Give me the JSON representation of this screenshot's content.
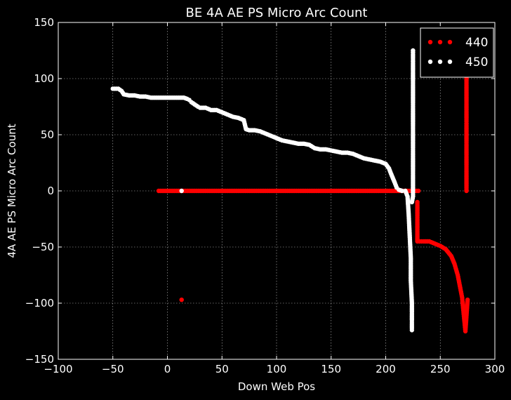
{
  "chart_data": {
    "type": "scatter",
    "title": "BE 4A AE PS Micro Arc Count",
    "xlabel": "Down Web Pos",
    "ylabel": "4A AE PS Micro Arc Count",
    "xlim": [
      -100,
      300
    ],
    "ylim": [
      -150,
      150
    ],
    "xticks": [
      -100,
      -50,
      0,
      50,
      100,
      150,
      200,
      250,
      300
    ],
    "yticks": [
      -150,
      -100,
      -50,
      0,
      50,
      100,
      150
    ],
    "grid": true,
    "legend_position": "top-right",
    "series": [
      {
        "name": "440",
        "color": "#ff0000",
        "points": [
          [
            -8,
            0
          ],
          [
            0,
            0
          ],
          [
            10,
            0
          ],
          [
            20,
            0
          ],
          [
            30,
            0
          ],
          [
            40,
            0
          ],
          [
            50,
            0
          ],
          [
            60,
            0
          ],
          [
            70,
            0
          ],
          [
            80,
            0
          ],
          [
            90,
            0
          ],
          [
            100,
            0
          ],
          [
            110,
            0
          ],
          [
            120,
            0
          ],
          [
            130,
            0
          ],
          [
            140,
            0
          ],
          [
            150,
            0
          ],
          [
            160,
            0
          ],
          [
            170,
            0
          ],
          [
            180,
            0
          ],
          [
            190,
            0
          ],
          [
            200,
            0
          ],
          [
            210,
            0
          ],
          [
            220,
            0
          ],
          [
            230,
            0
          ],
          [
            13,
            -97
          ],
          [
            229,
            -10
          ],
          [
            229,
            -45
          ],
          [
            235,
            -45
          ],
          [
            240,
            -45
          ],
          [
            245,
            -47
          ],
          [
            250,
            -49
          ],
          [
            255,
            -52
          ],
          [
            260,
            -58
          ],
          [
            263,
            -65
          ],
          [
            266,
            -75
          ],
          [
            268,
            -85
          ],
          [
            270,
            -95
          ],
          [
            271,
            -105
          ],
          [
            272,
            -115
          ],
          [
            273,
            -125
          ],
          [
            275,
            -97
          ],
          [
            274,
            0
          ],
          [
            274,
            5
          ],
          [
            274,
            25
          ],
          [
            274,
            40
          ],
          [
            274,
            45
          ],
          [
            274,
            60
          ],
          [
            274,
            62
          ],
          [
            274,
            80
          ],
          [
            274,
            100
          ],
          [
            274,
            103
          ]
        ]
      },
      {
        "name": "450",
        "color": "#ffffff",
        "points": [
          [
            -50,
            91
          ],
          [
            -45,
            91
          ],
          [
            -42,
            89
          ],
          [
            -40,
            86
          ],
          [
            -35,
            85
          ],
          [
            -30,
            85
          ],
          [
            -25,
            84
          ],
          [
            -20,
            84
          ],
          [
            -15,
            83
          ],
          [
            -10,
            83
          ],
          [
            0,
            83
          ],
          [
            10,
            83
          ],
          [
            15,
            83
          ],
          [
            18,
            82
          ],
          [
            20,
            81
          ],
          [
            22,
            79
          ],
          [
            25,
            77
          ],
          [
            28,
            75
          ],
          [
            30,
            74
          ],
          [
            35,
            74
          ],
          [
            40,
            72
          ],
          [
            45,
            72
          ],
          [
            50,
            70
          ],
          [
            55,
            68
          ],
          [
            60,
            66
          ],
          [
            65,
            65
          ],
          [
            70,
            63
          ],
          [
            72,
            55
          ],
          [
            75,
            54
          ],
          [
            80,
            54
          ],
          [
            85,
            53
          ],
          [
            90,
            51
          ],
          [
            95,
            49
          ],
          [
            100,
            47
          ],
          [
            105,
            45
          ],
          [
            110,
            44
          ],
          [
            115,
            43
          ],
          [
            120,
            42
          ],
          [
            125,
            42
          ],
          [
            130,
            41
          ],
          [
            135,
            38
          ],
          [
            140,
            37
          ],
          [
            145,
            37
          ],
          [
            150,
            36
          ],
          [
            155,
            35
          ],
          [
            160,
            34
          ],
          [
            165,
            34
          ],
          [
            170,
            33
          ],
          [
            175,
            31
          ],
          [
            180,
            29
          ],
          [
            185,
            28
          ],
          [
            190,
            27
          ],
          [
            195,
            26
          ],
          [
            200,
            24
          ],
          [
            203,
            20
          ],
          [
            205,
            15
          ],
          [
            208,
            8
          ],
          [
            210,
            3
          ],
          [
            212,
            1
          ],
          [
            215,
            0
          ],
          [
            218,
            0
          ],
          [
            220,
            -5
          ],
          [
            221,
            -20
          ],
          [
            222,
            -40
          ],
          [
            223,
            -60
          ],
          [
            223,
            -80
          ],
          [
            224,
            -100
          ],
          [
            224,
            -115
          ],
          [
            224,
            -124
          ],
          [
            13,
            0
          ],
          [
            224,
            -10
          ],
          [
            225,
            -5
          ],
          [
            225,
            0
          ],
          [
            225,
            20
          ],
          [
            225,
            40
          ],
          [
            225,
            60
          ],
          [
            225,
            80
          ],
          [
            225,
            100
          ],
          [
            225,
            115
          ],
          [
            225,
            125
          ]
        ]
      }
    ]
  }
}
